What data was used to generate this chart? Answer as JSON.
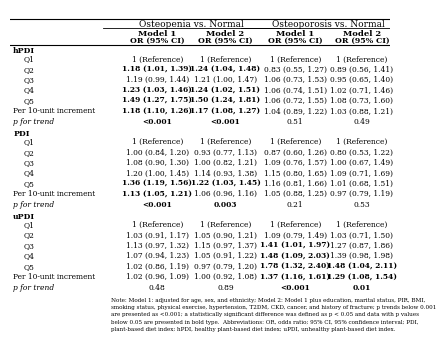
{
  "col_header_1": "Osteopenia vs. Normal",
  "col_header_2": "Osteoporosis vs. Normal",
  "subheaders": [
    "Model 1\nOR (95% CI)",
    "Model 2\nOR (95% CI)",
    "Model 1\nOR (95% CI)",
    "Model 2\nOR (95% CI)"
  ],
  "sections": [
    {
      "name": "hPDI",
      "rows": [
        {
          "label": "Q1",
          "values": [
            "1 (Reference)",
            "1 (Reference)",
            "1 (Reference)",
            "1 (Reference)"
          ],
          "bold": [
            false,
            false,
            false,
            false
          ]
        },
        {
          "label": "Q2",
          "values": [
            "1.18 (1.01, 1.39)",
            "1.24 (1.04, 1.48)",
            "0.83 (0.55, 1.27)",
            "0.89 (0.56, 1.41)"
          ],
          "bold": [
            true,
            true,
            false,
            false
          ]
        },
        {
          "label": "Q3",
          "values": [
            "1.19 (0.99, 1.44)",
            "1.21 (1.00, 1.47)",
            "1.06 (0.73, 1.53)",
            "0.95 (0.65, 1.40)"
          ],
          "bold": [
            false,
            false,
            false,
            false
          ]
        },
        {
          "label": "Q4",
          "values": [
            "1.23 (1.03, 1.46)",
            "1.24 (1.02, 1.51)",
            "1.06 (0.74, 1.51)",
            "1.02 (0.71, 1.46)"
          ],
          "bold": [
            true,
            true,
            false,
            false
          ]
        },
        {
          "label": "Q5",
          "values": [
            "1.49 (1.27, 1.75)",
            "1.50 (1.24, 1.81)",
            "1.06 (0.72, 1.55)",
            "1.08 (0.73, 1.60)"
          ],
          "bold": [
            true,
            true,
            false,
            false
          ]
        },
        {
          "label": "Per 10-unit increment",
          "values": [
            "1.18 (1.10, 1.26)",
            "1.17 (1.08, 1.27)",
            "1.04 (0.89, 1.22)",
            "1.03 (0.88, 1.21)"
          ],
          "bold": [
            true,
            true,
            false,
            false
          ]
        },
        {
          "label": "p for trend",
          "values": [
            "<0.001",
            "<0.001",
            "0.51",
            "0.49"
          ],
          "bold": [
            true,
            true,
            false,
            false
          ]
        }
      ]
    },
    {
      "name": "PDI",
      "rows": [
        {
          "label": "Q1",
          "values": [
            "1 (Reference)",
            "1 (Reference)",
            "1 (Reference)",
            "1 (Reference)"
          ],
          "bold": [
            false,
            false,
            false,
            false
          ]
        },
        {
          "label": "Q2",
          "values": [
            "1.00 (0.84, 1.20)",
            "0.93 (0.77, 1.13)",
            "0.87 (0.60, 1.26)",
            "0.80 (0.53, 1.22)"
          ],
          "bold": [
            false,
            false,
            false,
            false
          ]
        },
        {
          "label": "Q3",
          "values": [
            "1.08 (0.90, 1.30)",
            "1.00 (0.82, 1.21)",
            "1.09 (0.76, 1.57)",
            "1.00 (0.67, 1.49)"
          ],
          "bold": [
            false,
            false,
            false,
            false
          ]
        },
        {
          "label": "Q4",
          "values": [
            "1.20 (1.00, 1.45)",
            "1.14 (0.93, 1.38)",
            "1.15 (0.80, 1.65)",
            "1.09 (0.71, 1.69)"
          ],
          "bold": [
            false,
            false,
            false,
            false
          ]
        },
        {
          "label": "Q5",
          "values": [
            "1.36 (1.19, 1.56)",
            "1.22 (1.03, 1.45)",
            "1.16 (0.81, 1.66)",
            "1.01 (0.68, 1.51)"
          ],
          "bold": [
            true,
            true,
            false,
            false
          ]
        },
        {
          "label": "Per 10-unit increment",
          "values": [
            "1.13 (1.05, 1.21)",
            "1.06 (0.96, 1.16)",
            "1.05 (0.88, 1.25)",
            "0.97 (0.79, 1.19)"
          ],
          "bold": [
            true,
            false,
            false,
            false
          ]
        },
        {
          "label": "p for trend",
          "values": [
            "<0.001",
            "0.003",
            "0.21",
            "0.53"
          ],
          "bold": [
            true,
            true,
            false,
            false
          ]
        }
      ]
    },
    {
      "name": "uPDI",
      "rows": [
        {
          "label": "Q1",
          "values": [
            "1 (Reference)",
            "1 (Reference)",
            "1 (Reference)",
            "1 (Reference)"
          ],
          "bold": [
            false,
            false,
            false,
            false
          ]
        },
        {
          "label": "Q2",
          "values": [
            "1.03 (0.91, 1.17)",
            "1.05 (0.90, 1.21)",
            "1.09 (0.79, 1.49)",
            "1.03 (0.71, 1.50)"
          ],
          "bold": [
            false,
            false,
            false,
            false
          ]
        },
        {
          "label": "Q3",
          "values": [
            "1.13 (0.97, 1.32)",
            "1.15 (0.97, 1.37)",
            "1.41 (1.01, 1.97)",
            "1.27 (0.87, 1.86)"
          ],
          "bold": [
            false,
            false,
            true,
            false
          ]
        },
        {
          "label": "Q4",
          "values": [
            "1.07 (0.94, 1.23)",
            "1.05 (0.91, 1.22)",
            "1.48 (1.09, 2.03)",
            "1.39 (0.98, 1.98)"
          ],
          "bold": [
            false,
            false,
            true,
            false
          ]
        },
        {
          "label": "Q5",
          "values": [
            "1.02 (0.86, 1.19)",
            "0.97 (0.79, 1.20)",
            "1.78 (1.32, 2.40)",
            "1.48 (1.04, 2.11)"
          ],
          "bold": [
            false,
            false,
            true,
            true
          ]
        },
        {
          "label": "Per 10-unit increment",
          "values": [
            "1.02 (0.96, 1.09)",
            "1.00 (0.92, 1.08)",
            "1.37 (1.16, 1.61)",
            "1.29 (1.08, 1.54)"
          ],
          "bold": [
            false,
            false,
            true,
            true
          ]
        },
        {
          "label": "p for trend",
          "values": [
            "0.48",
            "0.89",
            "<0.001",
            "0.01"
          ],
          "bold": [
            false,
            false,
            true,
            true
          ]
        }
      ]
    }
  ],
  "footnote": "Note: Model 1: adjusted for age, sex, and ethnicity; Model 2: Model 1 plus education, marital status, PIR, BMI,\nsmoking status, physical exercise, hypertension, T2DM, CKD, cancer, and history of fracture; p trends below 0.001\nare presented as <0.001; a statistically significant difference was defined as p < 0.05 and data with p values\nbelow 0.05 are presented in bold type.  Abbreviations: OR, odds ratio; 95% CI, 95% confidence interval; PDI,\nplant-based diet index; hPDI, healthy plant-based diet index; uPDI, unhealthy plant-based diet index."
}
